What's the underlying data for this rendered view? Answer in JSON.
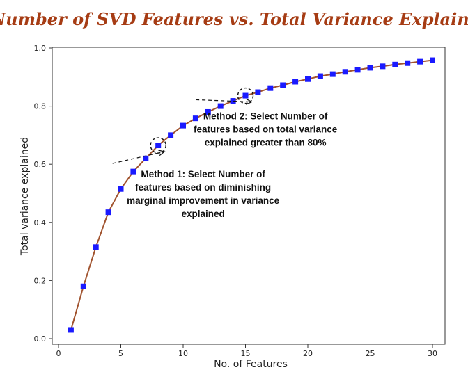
{
  "chart_data": {
    "type": "line",
    "title": "Number of SVD Features vs. Total Variance Explained",
    "xlabel": "No. of Features",
    "ylabel": "Total variance explained",
    "xlim": [
      0,
      30
    ],
    "ylim": [
      0,
      1.0
    ],
    "xticks": [
      0,
      5,
      10,
      15,
      20,
      25,
      30
    ],
    "yticks": [
      0.0,
      0.2,
      0.4,
      0.6,
      0.8,
      1.0
    ],
    "ytick_labels": [
      "0.0",
      "0.2",
      "0.4",
      "0.6",
      "0.8",
      "1.0"
    ],
    "grid": false,
    "colors": {
      "line": "#a0522d",
      "marker": "#1a1aff",
      "title": "#a63c14"
    },
    "series": [
      {
        "x": [
          1,
          2,
          3,
          4,
          5,
          6,
          7,
          8,
          9,
          10,
          11,
          12,
          13,
          14,
          15,
          16,
          17,
          18,
          19,
          20,
          21,
          22,
          23,
          24,
          25,
          26,
          27,
          28,
          29,
          30
        ],
        "values": [
          0.03,
          0.18,
          0.315,
          0.435,
          0.515,
          0.575,
          0.62,
          0.665,
          0.7,
          0.733,
          0.758,
          0.78,
          0.8,
          0.818,
          0.836,
          0.848,
          0.862,
          0.872,
          0.884,
          0.893,
          0.903,
          0.91,
          0.918,
          0.925,
          0.932,
          0.937,
          0.943,
          0.948,
          0.953,
          0.958
        ]
      }
    ],
    "annotations": [
      {
        "lines": [
          "Method 1: Select Number of",
          "features based on diminishing",
          "marginal improvement in variance",
          "explained"
        ],
        "point": {
          "x": 8,
          "y": 0.665
        },
        "text_anchor_data": {
          "x": 11.6,
          "y": 0.555
        }
      },
      {
        "lines": [
          "Method 2: Select Number of",
          "features based on total variance",
          "explained greater than 80%"
        ],
        "point": {
          "x": 15,
          "y": 0.836
        },
        "text_anchor_data": {
          "x": 16.6,
          "y": 0.755
        }
      }
    ]
  }
}
